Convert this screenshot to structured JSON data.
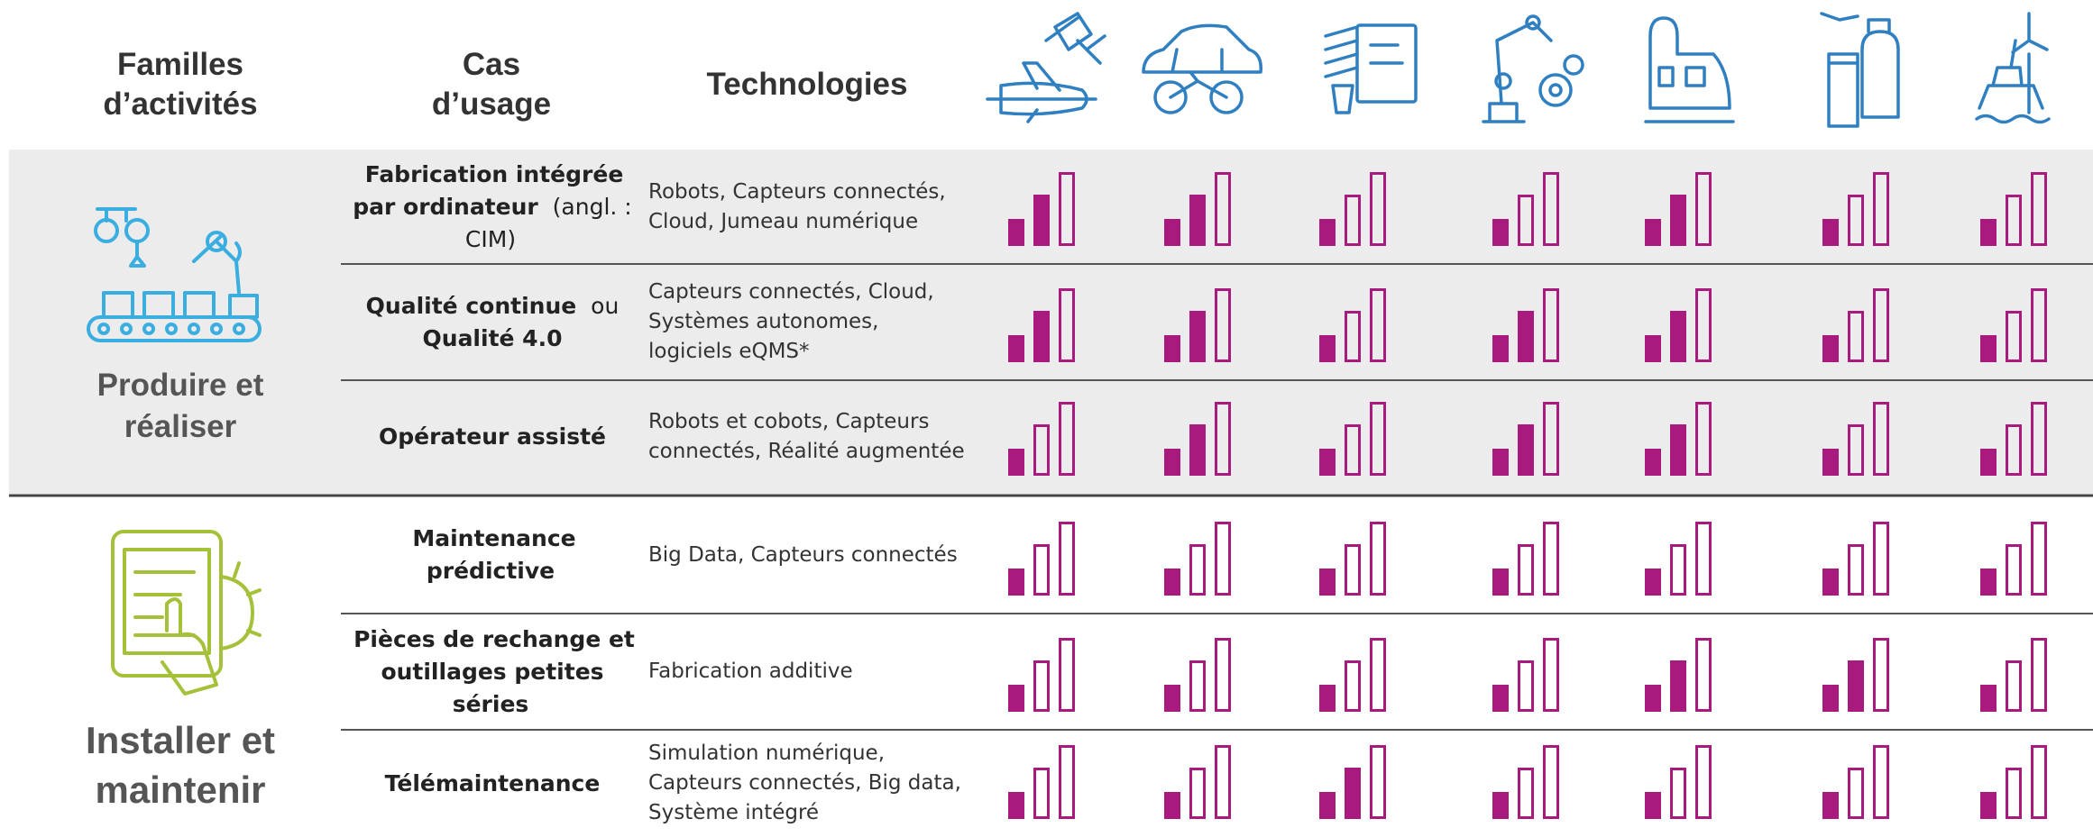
{
  "header": {
    "families": "Familles d’activités",
    "use_cases": "Cas d’usage",
    "technologies": "Technologies"
  },
  "level_max": 3,
  "level_color": "#a81a7d",
  "families": [
    {
      "label": "Produire et réaliser",
      "rows": [
        {
          "use_case": [
            {
              "text": "Fabrication intégrée par ordinateur",
              "bold": true
            },
            {
              "text": "(angl. : CIM)",
              "bold": false
            }
          ],
          "technologies": "Robots, Capteurs connectés, Cloud, Jumeau numérique",
          "levels": [
            2,
            2,
            1,
            1,
            2,
            1,
            1
          ]
        },
        {
          "use_case": [
            {
              "text": "Qualité continue",
              "bold": true
            },
            {
              "text": "ou",
              "bold": false
            },
            {
              "text": "Qualité 4.0",
              "bold": true
            }
          ],
          "technologies": "Capteurs connectés, Cloud, Systèmes autonomes, logiciels eQMS*",
          "levels": [
            2,
            2,
            1,
            2,
            2,
            1,
            1
          ]
        },
        {
          "use_case": [
            {
              "text": "Opérateur assisté",
              "bold": true
            }
          ],
          "technologies": "Robots et cobots, Capteurs connectés, Réalité augmentée",
          "levels": [
            1,
            2,
            1,
            2,
            2,
            1,
            1
          ]
        }
      ]
    },
    {
      "label": "Installer et maintenir",
      "rows": [
        {
          "use_case": [
            {
              "text": "Maintenance prédictive",
              "bold": true
            }
          ],
          "technologies": "Big Data, Capteurs connectés",
          "levels": [
            1,
            1,
            1,
            1,
            1,
            1,
            1
          ]
        },
        {
          "use_case": [
            {
              "text": "Pièces de rechange et outillages petites séries",
              "bold": true
            }
          ],
          "technologies": "Fabrication additive",
          "levels": [
            1,
            1,
            1,
            1,
            2,
            2,
            1
          ]
        },
        {
          "use_case": [
            {
              "text": "Télémaintenance",
              "bold": true
            }
          ],
          "technologies": "Simulation numérique, Capteurs connectés, Big data, Système intégré",
          "levels": [
            1,
            1,
            2,
            1,
            1,
            1,
            1
          ]
        }
      ]
    }
  ]
}
